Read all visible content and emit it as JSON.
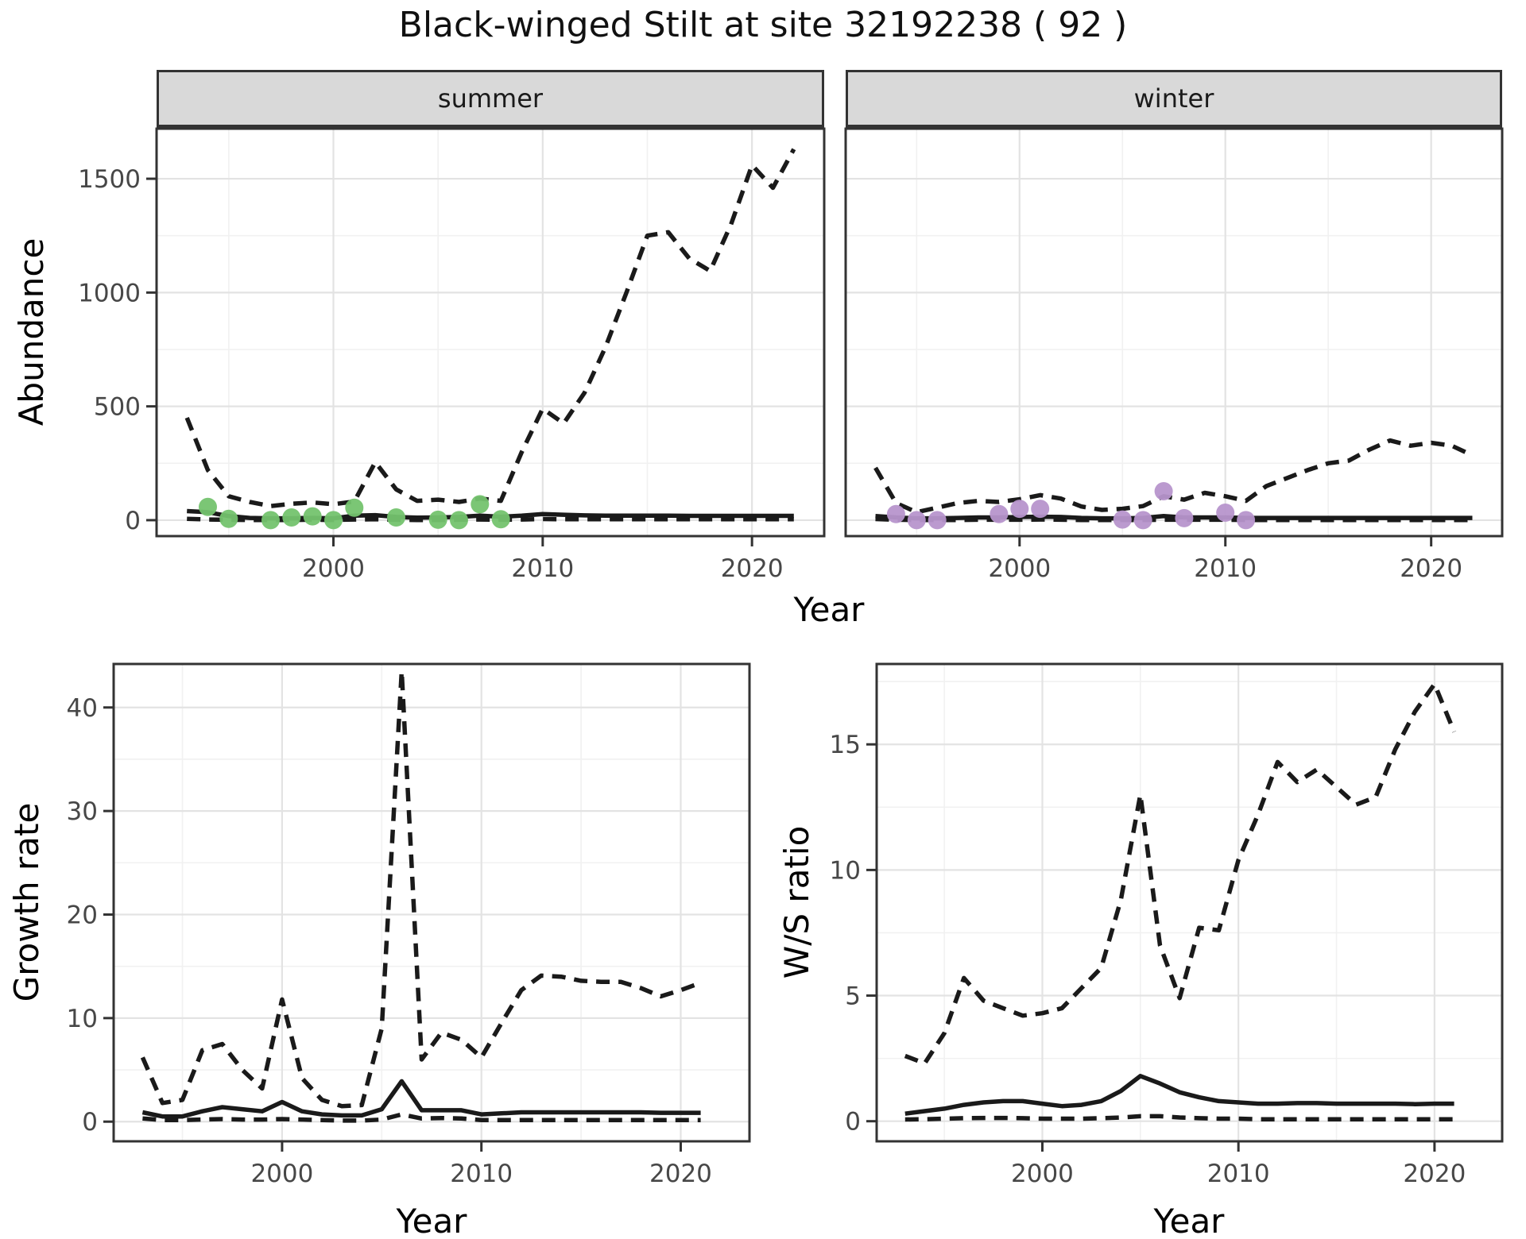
{
  "title": "Black-winged Stilt at site 32192238 ( 92 )",
  "colors": {
    "summer_point": "#74c36e",
    "winter_point": "#b795cc",
    "line": "#1a1a1a",
    "strip_bg": "#d9d9d9",
    "panel_border": "#333333",
    "grid_major": "#e3e3e3",
    "grid_minor": "#f1f1f1",
    "tick_text": "#474747"
  },
  "chart_data": [
    {
      "id": "abundance-summer",
      "type": "line",
      "facet_label": "summer",
      "xlabel": "Year",
      "ylabel": "Abundance",
      "x": [
        1993,
        1994,
        1995,
        1996,
        1997,
        1998,
        1999,
        2000,
        2001,
        2002,
        2003,
        2004,
        2005,
        2006,
        2007,
        2008,
        2009,
        2010,
        2011,
        2012,
        2013,
        2014,
        2015,
        2016,
        2017,
        2018,
        2019,
        2020,
        2021,
        2022
      ],
      "series": [
        {
          "name": "upper_ci",
          "style": "dashed",
          "values": [
            450,
            220,
            105,
            80,
            62,
            72,
            78,
            70,
            82,
            255,
            135,
            85,
            90,
            80,
            95,
            85,
            300,
            490,
            425,
            560,
            760,
            1000,
            1250,
            1265,
            1150,
            1095,
            1300,
            1560,
            1460,
            1630
          ]
        },
        {
          "name": "median",
          "style": "solid",
          "values": [
            40,
            35,
            18,
            10,
            8,
            8,
            10,
            8,
            20,
            22,
            14,
            11,
            12,
            14,
            20,
            15,
            20,
            27,
            24,
            21,
            20,
            20,
            20,
            20,
            19,
            19,
            19,
            19,
            19,
            19
          ]
        },
        {
          "name": "lower_ci",
          "style": "dashed",
          "values": [
            6,
            3,
            2,
            1,
            1,
            1,
            2,
            1,
            3,
            4,
            2,
            1,
            1,
            2,
            3,
            2,
            3,
            5,
            4,
            4,
            4,
            4,
            4,
            4,
            4,
            4,
            4,
            4,
            4,
            4
          ]
        }
      ],
      "points": {
        "name": "observed",
        "color_key": "summer_point",
        "data": [
          [
            1994,
            58
          ],
          [
            1995,
            6
          ],
          [
            1997,
            0
          ],
          [
            1998,
            12
          ],
          [
            1999,
            17
          ],
          [
            2000,
            0
          ],
          [
            2001,
            55
          ],
          [
            2003,
            12
          ],
          [
            2005,
            2
          ],
          [
            2006,
            0
          ],
          [
            2007,
            70
          ],
          [
            2008,
            4
          ]
        ]
      },
      "xlim": [
        1991.55,
        2023.45
      ],
      "ylim": [
        -70,
        1720
      ],
      "xticks": [
        2000,
        2010,
        2020
      ],
      "yticks": [
        0,
        500,
        1000,
        1500
      ],
      "xminor": [
        1995,
        2005,
        2015
      ],
      "yminor": [
        250,
        750,
        1250
      ],
      "show_ytick_labels": true,
      "grid": true,
      "legend": "none"
    },
    {
      "id": "abundance-winter",
      "type": "line",
      "facet_label": "winter",
      "xlabel": "Year",
      "ylabel": "Abundance",
      "x": [
        1993,
        1994,
        1995,
        1996,
        1997,
        1998,
        1999,
        2000,
        2001,
        2002,
        2003,
        2004,
        2005,
        2006,
        2007,
        2008,
        2009,
        2010,
        2011,
        2012,
        2013,
        2014,
        2015,
        2016,
        2017,
        2018,
        2019,
        2020,
        2021,
        2022
      ],
      "series": [
        {
          "name": "upper_ci",
          "style": "dashed",
          "values": [
            230,
            75,
            35,
            55,
            75,
            85,
            80,
            92,
            110,
            95,
            60,
            45,
            50,
            62,
            105,
            90,
            120,
            105,
            85,
            150,
            185,
            220,
            250,
            262,
            310,
            350,
            327,
            340,
            327,
            285
          ]
        },
        {
          "name": "median",
          "style": "solid",
          "values": [
            18,
            12,
            8,
            8,
            10,
            12,
            12,
            14,
            15,
            14,
            10,
            8,
            8,
            10,
            18,
            12,
            12,
            12,
            10,
            10,
            10,
            10,
            10,
            10,
            10,
            10,
            10,
            10,
            10,
            10
          ]
        },
        {
          "name": "lower_ci",
          "style": "dashed",
          "values": [
            5,
            2,
            1,
            1,
            1,
            2,
            2,
            2,
            3,
            2,
            1,
            1,
            1,
            1,
            2,
            2,
            2,
            2,
            1,
            1,
            1,
            1,
            1,
            1,
            1,
            1,
            1,
            1,
            1,
            1
          ]
        }
      ],
      "points": {
        "name": "observed",
        "color_key": "winter_point",
        "data": [
          [
            1994,
            27
          ],
          [
            1995,
            0
          ],
          [
            1996,
            0
          ],
          [
            1999,
            27
          ],
          [
            2000,
            50
          ],
          [
            2001,
            50
          ],
          [
            2005,
            3
          ],
          [
            2006,
            0
          ],
          [
            2007,
            127
          ],
          [
            2008,
            9
          ],
          [
            2010,
            33
          ],
          [
            2011,
            0
          ]
        ]
      },
      "xlim": [
        1991.55,
        2023.45
      ],
      "ylim": [
        -70,
        1720
      ],
      "xticks": [
        2000,
        2010,
        2020
      ],
      "yticks": [
        0,
        500,
        1000,
        1500
      ],
      "xminor": [
        1995,
        2005,
        2015
      ],
      "yminor": [
        250,
        750,
        1250
      ],
      "show_ytick_labels": false,
      "grid": true,
      "legend": "none"
    },
    {
      "id": "growth-rate",
      "type": "line",
      "facet_label": "",
      "xlabel": "Year",
      "ylabel": "Growth rate",
      "x": [
        1993,
        1994,
        1995,
        1996,
        1997,
        1998,
        1999,
        2000,
        2001,
        2002,
        2003,
        2004,
        2005,
        2006,
        2007,
        2008,
        2009,
        2010,
        2011,
        2012,
        2013,
        2014,
        2015,
        2016,
        2017,
        2018,
        2019,
        2020,
        2021
      ],
      "series": [
        {
          "name": "upper_ci",
          "style": "dashed",
          "values": [
            6.2,
            1.8,
            2.1,
            6.9,
            7.5,
            5.0,
            3.2,
            11.8,
            4.2,
            2.1,
            1.5,
            1.6,
            9.0,
            43.5,
            6.0,
            8.6,
            7.9,
            6.2,
            9.5,
            12.7,
            14.1,
            14.0,
            13.6,
            13.5,
            13.5,
            12.9,
            12.1,
            12.7,
            13.4
          ]
        },
        {
          "name": "median",
          "style": "solid",
          "values": [
            0.9,
            0.5,
            0.5,
            1.0,
            1.4,
            1.2,
            1.0,
            1.9,
            1.0,
            0.7,
            0.6,
            0.6,
            1.2,
            3.9,
            1.1,
            1.1,
            1.1,
            0.7,
            0.8,
            0.9,
            0.9,
            0.9,
            0.9,
            0.9,
            0.9,
            0.9,
            0.85,
            0.85,
            0.85
          ]
        },
        {
          "name": "lower_ci",
          "style": "dashed",
          "values": [
            0.3,
            0.15,
            0.15,
            0.2,
            0.25,
            0.2,
            0.2,
            0.25,
            0.2,
            0.15,
            0.1,
            0.1,
            0.2,
            0.7,
            0.3,
            0.35,
            0.3,
            0.15,
            0.15,
            0.15,
            0.15,
            0.15,
            0.15,
            0.15,
            0.15,
            0.15,
            0.15,
            0.15,
            0.15
          ]
        }
      ],
      "points": {
        "name": "observed",
        "color_key": "summer_point",
        "data": []
      },
      "xlim": [
        1991.55,
        2023.45
      ],
      "ylim": [
        -1.9,
        44.2
      ],
      "xticks": [
        2000,
        2010,
        2020
      ],
      "yticks": [
        0,
        10,
        20,
        30,
        40
      ],
      "xminor": [
        1995,
        2005,
        2015
      ],
      "yminor": [
        5,
        15,
        25,
        35
      ],
      "show_ytick_labels": true,
      "grid": true,
      "legend": "none"
    },
    {
      "id": "ws-ratio",
      "type": "line",
      "facet_label": "",
      "xlabel": "Year",
      "ylabel": "W/S ratio",
      "x": [
        1993,
        1994,
        1995,
        1996,
        1997,
        1998,
        1999,
        2000,
        2001,
        2002,
        2003,
        2004,
        2005,
        2006,
        2007,
        2008,
        2009,
        2010,
        2011,
        2012,
        2013,
        2014,
        2015,
        2016,
        2017,
        2018,
        2019,
        2020,
        2021
      ],
      "series": [
        {
          "name": "upper_ci",
          "style": "dashed",
          "values": [
            2.6,
            2.3,
            3.5,
            5.7,
            4.8,
            4.5,
            4.2,
            4.3,
            4.5,
            5.3,
            6.1,
            8.8,
            13.0,
            7.0,
            4.9,
            7.7,
            7.6,
            10.4,
            12.2,
            14.3,
            13.5,
            14.0,
            13.3,
            12.6,
            12.9,
            14.8,
            16.3,
            17.4,
            15.5
          ]
        },
        {
          "name": "median",
          "style": "solid",
          "values": [
            0.3,
            0.4,
            0.5,
            0.65,
            0.75,
            0.8,
            0.8,
            0.7,
            0.6,
            0.65,
            0.8,
            1.2,
            1.8,
            1.5,
            1.15,
            0.95,
            0.8,
            0.75,
            0.7,
            0.7,
            0.72,
            0.72,
            0.7,
            0.7,
            0.7,
            0.7,
            0.68,
            0.7,
            0.7
          ]
        },
        {
          "name": "lower_ci",
          "style": "dashed",
          "values": [
            0.07,
            0.08,
            0.1,
            0.12,
            0.13,
            0.13,
            0.12,
            0.1,
            0.1,
            0.1,
            0.12,
            0.15,
            0.2,
            0.2,
            0.15,
            0.12,
            0.1,
            0.1,
            0.08,
            0.08,
            0.08,
            0.08,
            0.08,
            0.08,
            0.08,
            0.08,
            0.08,
            0.08,
            0.08
          ]
        }
      ],
      "points": {
        "name": "observed",
        "color_key": "winter_point",
        "data": []
      },
      "xlim": [
        1991.55,
        2023.45
      ],
      "ylim": [
        -0.8,
        18.2
      ],
      "xticks": [
        2000,
        2010,
        2020
      ],
      "yticks": [
        0,
        5,
        10,
        15
      ],
      "xminor": [
        1995,
        2005,
        2015
      ],
      "yminor": [
        2.5,
        7.5,
        12.5,
        17.5
      ],
      "show_ytick_labels": true,
      "grid": true,
      "legend": "none"
    }
  ]
}
